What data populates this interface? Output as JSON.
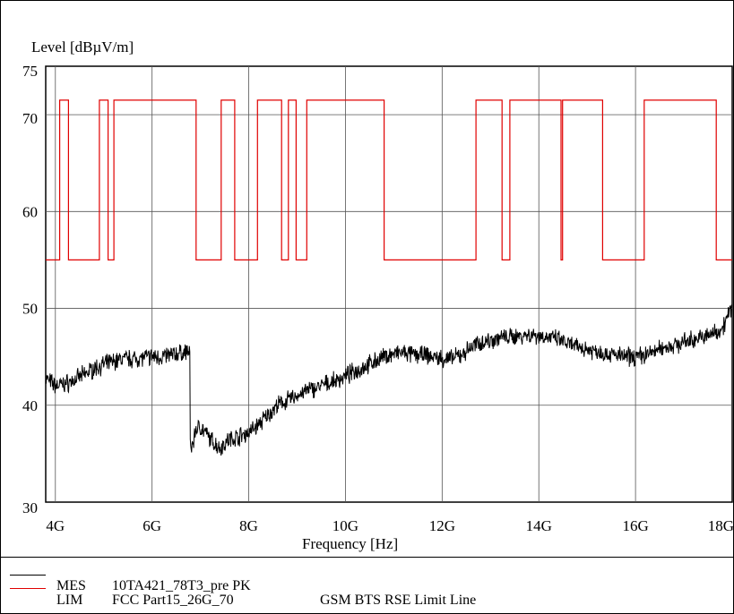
{
  "chart_data": {
    "type": "line",
    "ylabel": "Level [dBµV/m]",
    "xlabel": "Frequency [Hz]",
    "xlim": [
      3.8,
      18.0
    ],
    "ylim": [
      30,
      75
    ],
    "x_ticks": [
      {
        "v": 4,
        "label": "4G"
      },
      {
        "v": 6,
        "label": "6G"
      },
      {
        "v": 8,
        "label": "8G"
      },
      {
        "v": 10,
        "label": "10G"
      },
      {
        "v": 12,
        "label": "12G"
      },
      {
        "v": 14,
        "label": "14G"
      },
      {
        "v": 16,
        "label": "16G"
      },
      {
        "v": 18,
        "label": "18G"
      }
    ],
    "y_ticks": [
      {
        "v": 30,
        "label": "30"
      },
      {
        "v": 40,
        "label": "40"
      },
      {
        "v": 50,
        "label": "50"
      },
      {
        "v": 60,
        "label": "60"
      },
      {
        "v": 70,
        "label": "70"
      },
      {
        "v": 75,
        "label": "75"
      }
    ],
    "grid": true,
    "series": [
      {
        "name": "MES",
        "color": "#000000",
        "x": [
          3.8,
          4.0,
          4.2,
          4.4,
          4.6,
          4.8,
          5.0,
          5.2,
          5.4,
          5.6,
          5.8,
          6.0,
          6.2,
          6.4,
          6.6,
          6.7,
          6.78,
          6.8,
          6.86,
          6.9,
          7.0,
          7.2,
          7.4,
          7.6,
          7.8,
          8.0,
          8.2,
          8.4,
          8.6,
          8.8,
          9.0,
          9.2,
          9.4,
          9.6,
          9.8,
          10.0,
          10.2,
          10.4,
          10.6,
          10.8,
          11.0,
          11.2,
          11.4,
          11.6,
          11.8,
          12.0,
          12.2,
          12.4,
          12.6,
          12.8,
          13.0,
          13.2,
          13.4,
          13.6,
          13.8,
          14.0,
          14.2,
          14.4,
          14.6,
          14.8,
          15.0,
          15.2,
          15.4,
          15.6,
          15.8,
          16.0,
          16.2,
          16.4,
          16.6,
          16.8,
          17.0,
          17.2,
          17.4,
          17.6,
          17.8,
          18.0
        ],
        "y": [
          42.8,
          42.0,
          42.2,
          42.6,
          43.2,
          43.8,
          44.2,
          44.5,
          44.8,
          44.8,
          44.9,
          45.0,
          45.0,
          45.2,
          45.4,
          45.5,
          45.6,
          35.5,
          36.3,
          37.5,
          37.8,
          36.5,
          35.6,
          36.5,
          36.8,
          37.2,
          38.0,
          39.0,
          40.0,
          40.5,
          41.0,
          41.5,
          41.8,
          42.2,
          42.5,
          43.0,
          43.5,
          44.0,
          44.5,
          45.0,
          45.3,
          45.4,
          45.2,
          45.2,
          45.0,
          44.8,
          44.8,
          45.2,
          46.0,
          46.5,
          46.7,
          47.0,
          47.0,
          47.2,
          47.3,
          47.2,
          47.0,
          46.8,
          46.3,
          46.0,
          45.8,
          45.6,
          45.3,
          45.2,
          45.0,
          45.0,
          45.2,
          45.6,
          46.0,
          46.2,
          46.5,
          46.8,
          47.0,
          47.4,
          48.0,
          50.2
        ]
      },
      {
        "name": "LIM",
        "color": "#e00000",
        "x": [
          3.8,
          4.09,
          4.09,
          4.27,
          4.27,
          4.91,
          4.91,
          5.09,
          5.09,
          5.21,
          5.21,
          6.91,
          6.91,
          7.43,
          7.43,
          7.71,
          7.71,
          8.18,
          8.18,
          8.68,
          8.68,
          8.82,
          8.82,
          8.98,
          8.98,
          9.2,
          9.2,
          10.8,
          10.8,
          12.7,
          12.7,
          13.24,
          13.24,
          13.4,
          13.4,
          14.46,
          14.46,
          14.49,
          14.49,
          15.32,
          15.32,
          16.18,
          16.18,
          17.67,
          17.67,
          18.0
        ],
        "y": [
          55.0,
          55.0,
          71.5,
          71.5,
          55.0,
          55.0,
          71.5,
          71.5,
          55.0,
          55.0,
          71.5,
          71.5,
          55.0,
          55.0,
          71.5,
          71.5,
          55.0,
          55.0,
          71.5,
          71.5,
          55.0,
          55.0,
          71.5,
          71.5,
          55.0,
          55.0,
          71.5,
          71.5,
          55.0,
          55.0,
          71.5,
          71.5,
          55.0,
          55.0,
          71.5,
          71.5,
          55.0,
          55.0,
          71.5,
          71.5,
          55.0,
          55.0,
          71.5,
          71.5,
          55.0,
          55.0
        ]
      }
    ]
  },
  "legend": [
    {
      "key": "MES",
      "text": "10TA421_78T3_pre PK",
      "extra": "",
      "color": "#000000"
    },
    {
      "key": "LIM",
      "text": "FCC Part15_26G_70",
      "extra": "GSM BTS RSE Limit Line",
      "color": "#e00000"
    }
  ]
}
